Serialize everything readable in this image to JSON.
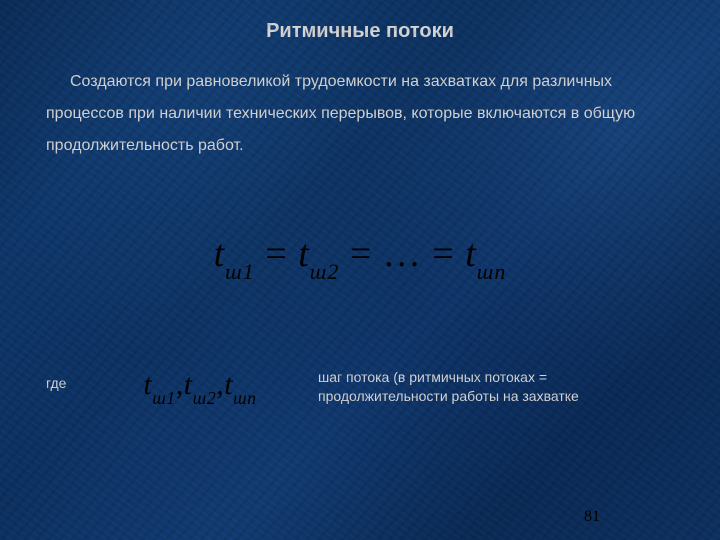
{
  "slide": {
    "title": "Ритмичные потоки",
    "paragraph": "Создаются при равновеликой трудоемкости на захватках для различных процессов при наличии технических перерывов, которые включаются в общую продолжительность работ.",
    "where_label": "где",
    "where_text": "шаг потока (в ритмичных потоках = продолжительности работы на захватке",
    "page_number": "81"
  },
  "equations": {
    "main": {
      "terms": [
        "t",
        "t",
        "…",
        "t"
      ],
      "subs": [
        "ш1",
        "ш2",
        "",
        "шn"
      ],
      "separator": " = "
    },
    "small": {
      "terms": [
        "t",
        "t",
        "t"
      ],
      "subs": [
        "ш1",
        "ш2",
        "шn"
      ],
      "separator": ","
    }
  },
  "style": {
    "text_color": "#d4d4d4",
    "formula_color": "#000000",
    "background_base": "#0b3060",
    "title_fontsize": 20,
    "body_fontsize": 16,
    "eq_main_fontsize": 38,
    "eq_small_fontsize": 30,
    "page_fontsize": 16,
    "font_body": "Arial",
    "font_formula": "Times New Roman"
  }
}
